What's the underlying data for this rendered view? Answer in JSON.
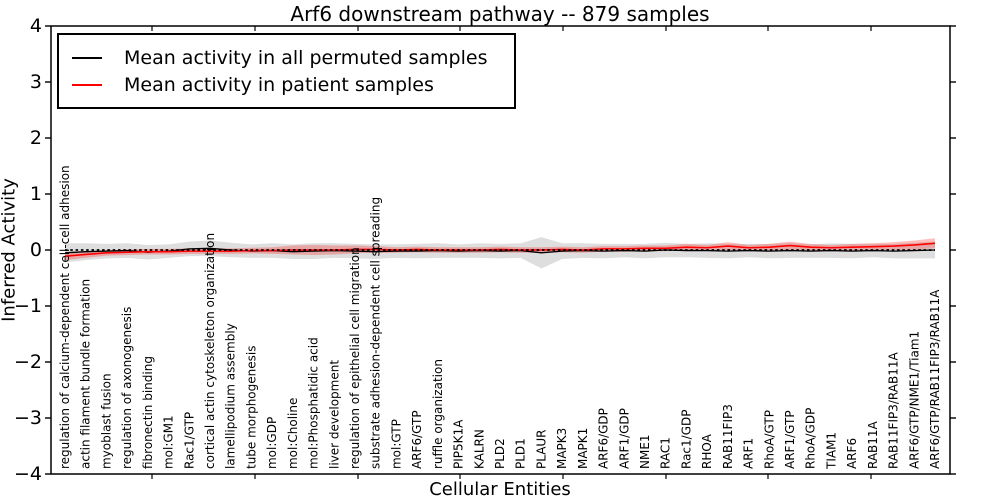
{
  "chart_data": {
    "type": "line",
    "title": "Arf6 downstream pathway -- 879 samples",
    "xlabel": "Cellular Entities",
    "ylabel": "Inferred Activity",
    "ylim": [
      -4,
      4
    ],
    "yticks": [
      -4,
      -3,
      -2,
      -1,
      0,
      1,
      2,
      3,
      4
    ],
    "grid": false,
    "legend_position": "upper left",
    "zero_line_style": "black dotted",
    "categories": [
      "regulation of calcium-dependent cell-cell adhesion",
      "actin filament bundle formation",
      "myoblast fusion",
      "regulation of axonogenesis",
      "fibronectin binding",
      "mol:GM1",
      "Rac1/GTP",
      "cortical actin cytoskeleton organization",
      "lamellipodium assembly",
      "tube morphogenesis",
      "mol:GDP",
      "mol:Choline",
      "mol:Phosphatidic acid",
      "liver development",
      "regulation of epithelial cell migration",
      "substrate adhesion-dependent cell spreading",
      "mol:GTP",
      "ARF6/GTP",
      "ruffle organization",
      "PIP5K1A",
      "KALRN",
      "PLD2",
      "PLD1",
      "PLAUR",
      "MAPK3",
      "MAPK1",
      "ARF6/GDP",
      "ARF1/GDP",
      "NME1",
      "RAC1",
      "Rac1/GDP",
      "RHOA",
      "RAB11FIP3",
      "ARF1",
      "RhoA/GTP",
      "ARF1/GTP",
      "RhoA/GDP",
      "TIAM1",
      "ARF6",
      "RAB11A",
      "RAB11FIP3/RAB11A",
      "ARF6/GTP/NME1/Tiam1",
      "ARF6/GTP/RAB11FIP3/RAB11A"
    ],
    "series": [
      {
        "name": "Mean activity in all permuted samples",
        "color": "#000000",
        "values": [
          -0.05,
          -0.03,
          -0.02,
          -0.01,
          -0.04,
          -0.02,
          0.02,
          0.03,
          0.0,
          -0.02,
          -0.01,
          -0.03,
          -0.02,
          -0.01,
          -0.02,
          -0.03,
          -0.02,
          -0.02,
          -0.01,
          -0.02,
          -0.01,
          -0.02,
          -0.01,
          -0.05,
          -0.02,
          -0.01,
          -0.02,
          -0.01,
          -0.02,
          0.0,
          -0.01,
          -0.01,
          -0.02,
          -0.01,
          -0.02,
          -0.01,
          -0.02,
          -0.01,
          -0.02,
          -0.01,
          -0.02,
          -0.01,
          0.0
        ]
      },
      {
        "name": "Mean activity in patient samples",
        "color": "#ff0000",
        "values": [
          -0.11,
          -0.08,
          -0.05,
          -0.04,
          -0.03,
          -0.03,
          -0.02,
          -0.02,
          -0.02,
          -0.01,
          -0.01,
          0.0,
          0.0,
          0.0,
          0.01,
          0.01,
          0.0,
          0.01,
          0.0,
          0.0,
          0.0,
          0.01,
          0.0,
          0.0,
          0.01,
          0.0,
          0.02,
          0.02,
          0.03,
          0.03,
          0.05,
          0.04,
          0.07,
          0.04,
          0.05,
          0.08,
          0.05,
          0.04,
          0.05,
          0.06,
          0.07,
          0.09,
          0.12
        ]
      }
    ],
    "bands": [
      {
        "name": "permuted-samples-range",
        "color": "#c8c8c8",
        "opacity": 0.6,
        "center_series": 0,
        "half_widths": [
          0.17,
          0.15,
          0.13,
          0.13,
          0.13,
          0.12,
          0.13,
          0.14,
          0.13,
          0.12,
          0.13,
          0.13,
          0.14,
          0.13,
          0.13,
          0.13,
          0.12,
          0.13,
          0.13,
          0.12,
          0.13,
          0.13,
          0.13,
          0.28,
          0.14,
          0.13,
          0.13,
          0.12,
          0.13,
          0.13,
          0.12,
          0.13,
          0.13,
          0.12,
          0.13,
          0.13,
          0.12,
          0.13,
          0.13,
          0.12,
          0.13,
          0.14,
          0.15
        ]
      },
      {
        "name": "patient-samples-range",
        "color": "#ff0000",
        "opacity": 0.25,
        "center_series": 1,
        "half_widths": [
          0.07,
          0.06,
          0.05,
          0.05,
          0.05,
          0.05,
          0.05,
          0.05,
          0.05,
          0.05,
          0.06,
          0.08,
          0.09,
          0.08,
          0.07,
          0.06,
          0.05,
          0.05,
          0.05,
          0.05,
          0.05,
          0.05,
          0.05,
          0.05,
          0.05,
          0.05,
          0.05,
          0.05,
          0.05,
          0.05,
          0.06,
          0.05,
          0.07,
          0.05,
          0.06,
          0.07,
          0.06,
          0.05,
          0.06,
          0.06,
          0.07,
          0.08,
          0.09
        ]
      }
    ]
  }
}
